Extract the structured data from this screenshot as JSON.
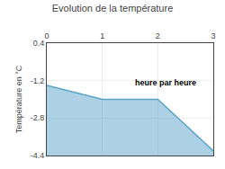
{
  "chart_data": {
    "type": "area",
    "title": "Evolution de la température",
    "ylabel": "Température en °C",
    "annotations": [
      {
        "text": "heure par heure",
        "x": 1.55,
        "y": -1.55
      }
    ],
    "x": [
      0,
      1,
      2,
      3
    ],
    "values": [
      -1.4,
      -2.0,
      -2.0,
      -4.2
    ],
    "color": "#5ba3c9",
    "xlim": [
      0,
      3
    ],
    "xticks": [
      0,
      1,
      2,
      3
    ],
    "ylim": [
      -4.4,
      0.4
    ],
    "yticks": [
      0.4,
      -1.2,
      -2.8,
      -4.4
    ],
    "grid": true
  }
}
